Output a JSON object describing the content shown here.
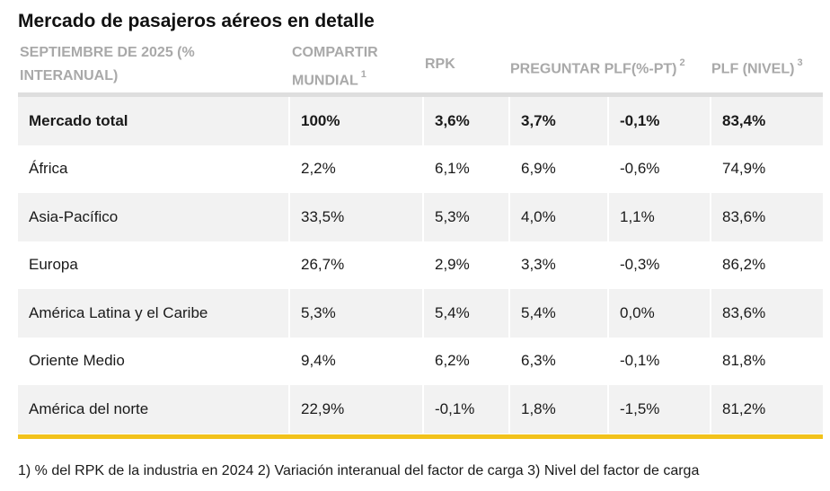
{
  "title": "Mercado de pasajeros aéreos en detalle",
  "header": {
    "col0_line1": "SEPTIEMBRE DE 2025 (%",
    "col0_line2": "INTERANUAL)",
    "col1_line1": "COMPARTIR",
    "col1_line2": "MUNDIAL",
    "col1_sup": "1",
    "col2": "RPK",
    "col3": "PREGUNTAR",
    "col4": "PLF(%-PT)",
    "col4_sup": "2",
    "col5": "PLF (NIVEL)",
    "col5_sup": "3"
  },
  "rows": [
    {
      "region": "Mercado total",
      "share": "100%",
      "rpk": "3,6%",
      "ask": "3,7%",
      "plf_pt": "-0,1%",
      "plf_level": "83,4%"
    },
    {
      "region": "África",
      "share": "2,2%",
      "rpk": "6,1%",
      "ask": "6,9%",
      "plf_pt": "-0,6%",
      "plf_level": "74,9%"
    },
    {
      "region": "Asia-Pacífico",
      "share": "33,5%",
      "rpk": "5,3%",
      "ask": "4,0%",
      "plf_pt": "1,1%",
      "plf_level": "83,6%"
    },
    {
      "region": "Europa",
      "share": "26,7%",
      "rpk": "2,9%",
      "ask": "3,3%",
      "plf_pt": "-0,3%",
      "plf_level": "86,2%"
    },
    {
      "region": "América Latina y el Caribe",
      "share": "5,3%",
      "rpk": "5,4%",
      "ask": "5,4%",
      "plf_pt": "0,0%",
      "plf_level": "83,6%"
    },
    {
      "region": "Oriente Medio",
      "share": "9,4%",
      "rpk": "6,2%",
      "ask": "6,3%",
      "plf_pt": "-0,1%",
      "plf_level": "81,8%"
    },
    {
      "region": "América del norte",
      "share": "22,9%",
      "rpk": "-0,1%",
      "ask": "1,8%",
      "plf_pt": "-1,5%",
      "plf_level": "81,2%"
    }
  ],
  "footnote": "1) % del RPK de la industria en 2024 2) Variación interanual del factor de carga 3) Nivel del factor de carga",
  "colors": {
    "accent": "#f2c21b",
    "row_shade": "#f2f2f2",
    "header_text": "#a9a9a9"
  }
}
